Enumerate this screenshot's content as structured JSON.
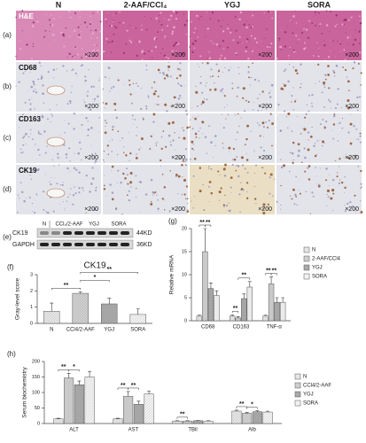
{
  "columns": [
    "N",
    "2-AAF/CCl₄",
    "YGJ",
    "SORA"
  ],
  "rows": [
    {
      "label": "(a)",
      "stain": "H&E"
    },
    {
      "label": "(b)",
      "stain": "CD68"
    },
    {
      "label": "(c)",
      "stain": "CD163"
    },
    {
      "label": "(d)",
      "stain": "CK19"
    }
  ],
  "magnification": "×200",
  "blot": {
    "label": "(e)",
    "lanes": [
      "N",
      "CCl₄/2-AAF",
      "YGJ",
      "SORA"
    ],
    "bands": [
      {
        "name": "CK19",
        "size": "44KD"
      },
      {
        "name": "GAPDH",
        "size": "36KD"
      }
    ]
  },
  "chart_data": [
    {
      "panel": "(f)",
      "type": "bar",
      "title": "CK19",
      "ylabel": "Gray-level score",
      "categories": [
        "N",
        "CCl4/2-AAF",
        "YGJ",
        "SORA"
      ],
      "values": [
        0.75,
        1.85,
        1.2,
        0.55
      ],
      "errors": [
        0.5,
        0.1,
        0.35,
        0.35
      ],
      "colors": [
        "#e6e6e6",
        "#cfcfcf",
        "#a9a9a9",
        "#f3f3f3"
      ],
      "ylim": [
        0,
        3
      ],
      "yticks": [
        0,
        1,
        2,
        3
      ],
      "significance": [
        {
          "from": 0,
          "to": 1,
          "label": "**"
        },
        {
          "from": 1,
          "to": 2,
          "label": "*"
        },
        {
          "from": 1,
          "to": 3,
          "label": "**"
        }
      ]
    },
    {
      "panel": "(g)",
      "type": "bar",
      "ylabel": "Relative mRNA",
      "categories": [
        "CD68",
        "CD163",
        "TNF-α"
      ],
      "series": [
        {
          "name": "N",
          "color": "#e6e6e6",
          "values": [
            1,
            1,
            1
          ],
          "errors": [
            0.2,
            0.3,
            0.2
          ]
        },
        {
          "name": "2-AAF/CCl4",
          "color": "#cfcfcf",
          "values": [
            15,
            0.6,
            8
          ],
          "errors": [
            5,
            0.3,
            1.5
          ]
        },
        {
          "name": "YGJ",
          "color": "#a9a9a9",
          "values": [
            7,
            4.8,
            4
          ],
          "errors": [
            1.2,
            1,
            1
          ]
        },
        {
          "name": "SORA",
          "color": "#f3f3f3",
          "values": [
            5.5,
            7.3,
            4
          ],
          "errors": [
            1,
            1.2,
            1
          ]
        }
      ],
      "ylim": [
        0,
        20
      ],
      "yticks": [
        0,
        5,
        10,
        15,
        20
      ],
      "significance": [
        {
          "category": 0,
          "from": 0,
          "to": 1,
          "label": "**"
        },
        {
          "category": 0,
          "from": 1,
          "to": 2,
          "label": "**"
        },
        {
          "category": 1,
          "from": 0,
          "to": 1,
          "label": "**"
        },
        {
          "category": 1,
          "from": 1,
          "to": 3,
          "label": "**"
        },
        {
          "category": 2,
          "from": 0,
          "to": 1,
          "label": "**"
        },
        {
          "category": 2,
          "from": 1,
          "to": 2,
          "label": "**"
        }
      ]
    },
    {
      "panel": "(h)",
      "type": "bar",
      "ylabel": "Serum biochemistry",
      "categories": [
        "ALT",
        "AST",
        "TBil",
        "Alb"
      ],
      "series": [
        {
          "name": "N",
          "color": "#e6e6e6",
          "values": [
            15,
            15,
            8,
            40
          ],
          "errors": [
            2,
            2,
            1,
            3
          ]
        },
        {
          "name": "CCl4/2-AAF",
          "color": "#cfcfcf",
          "values": [
            147,
            88,
            8,
            33
          ],
          "errors": [
            15,
            15,
            1,
            3
          ]
        },
        {
          "name": "YGJ",
          "color": "#a9a9a9",
          "values": [
            125,
            62,
            9,
            38
          ],
          "errors": [
            12,
            10,
            1,
            3
          ]
        },
        {
          "name": "SORA",
          "color": "#f3f3f3",
          "values": [
            150,
            95,
            8,
            37
          ],
          "errors": [
            18,
            10,
            1,
            3
          ]
        }
      ],
      "ylim": [
        0,
        200
      ],
      "yticks": [
        0,
        50,
        100,
        150,
        200
      ],
      "significance": [
        {
          "category": 0,
          "from": 0,
          "to": 1,
          "label": "**"
        },
        {
          "category": 0,
          "from": 1,
          "to": 2,
          "label": "*"
        },
        {
          "category": 1,
          "from": 0,
          "to": 1,
          "label": "**"
        },
        {
          "category": 1,
          "from": 1,
          "to": 2,
          "label": "**"
        },
        {
          "category": 2,
          "from": 0,
          "to": 1,
          "label": "**"
        },
        {
          "category": 3,
          "from": 0,
          "to": 1,
          "label": "**"
        },
        {
          "category": 3,
          "from": 1,
          "to": 2,
          "label": "*"
        }
      ]
    }
  ]
}
